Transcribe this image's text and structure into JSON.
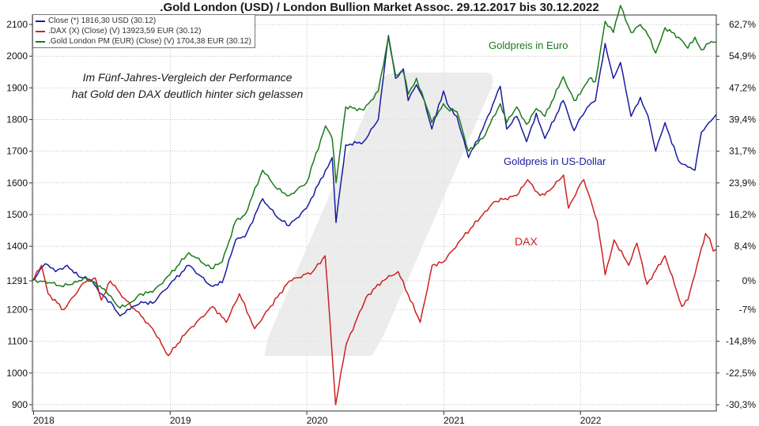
{
  "title": ".Gold London (USD) / London Bullion Market Assoc. 29.12.2017 bis 30.12.2022",
  "legend": [
    {
      "label": "Close (*) 1816,30 USD (30.12)",
      "color": "#1a1aa0"
    },
    {
      "label": ".DAX (X) (Close) (V) 13923,59 EUR (30.12)",
      "color": "#cc2222"
    },
    {
      "label": ".Gold London PM (EUR) (Close) (V) 1704,38 EUR (30.12)",
      "color": "#1a7a1a"
    }
  ],
  "annotations": {
    "note_line1": "Im Fünf-Jahres-Vergleich der Performance",
    "note_line2": "hat Gold den DAX deutlich hinter sich gelassen",
    "euro": "Goldpreis in Euro",
    "usd": "Goldpreis in US-Dollar",
    "dax": "DAX"
  },
  "chart_data": {
    "type": "line",
    "x_ticks": [
      "2018",
      "2019",
      "2020",
      "2021",
      "2022"
    ],
    "x_tick_dates": [
      "2018-01-01",
      "2019-01-01",
      "2020-01-01",
      "2021-01-01",
      "2022-01-01"
    ],
    "x_range": [
      "2017-12-29",
      "2022-12-30"
    ],
    "y_left_ticks": [
      900,
      1000,
      1100,
      1200,
      1291,
      1400,
      1500,
      1600,
      1700,
      1800,
      1900,
      2000,
      2100
    ],
    "y_left_range": [
      880,
      2130
    ],
    "y_right_ticks": [
      "62,7%",
      "54,9%",
      "47,2%",
      "39,4%",
      "31,7%",
      "23,9%",
      "16,2%",
      "8,4%",
      "0%",
      "-7%",
      "-14,8%",
      "-22,5%",
      "-30,3%"
    ],
    "grid": true,
    "series": [
      {
        "name": "Close (*) 1816,30 USD (30.12)",
        "color": "#1a1aa0",
        "points": [
          [
            "2017-12-29",
            1291
          ],
          [
            "2018-02-01",
            1345
          ],
          [
            "2018-03-01",
            1320
          ],
          [
            "2018-04-01",
            1340
          ],
          [
            "2018-05-01",
            1305
          ],
          [
            "2018-06-01",
            1295
          ],
          [
            "2018-07-01",
            1250
          ],
          [
            "2018-08-01",
            1215
          ],
          [
            "2018-08-20",
            1180
          ],
          [
            "2018-09-15",
            1200
          ],
          [
            "2018-10-15",
            1225
          ],
          [
            "2018-11-15",
            1220
          ],
          [
            "2018-12-31",
            1280
          ],
          [
            "2019-02-20",
            1340
          ],
          [
            "2019-04-20",
            1275
          ],
          [
            "2019-05-20",
            1285
          ],
          [
            "2019-06-25",
            1420
          ],
          [
            "2019-07-20",
            1430
          ],
          [
            "2019-09-05",
            1550
          ],
          [
            "2019-10-15",
            1490
          ],
          [
            "2019-11-15",
            1465
          ],
          [
            "2019-12-31",
            1520
          ],
          [
            "2020-02-20",
            1640
          ],
          [
            "2020-03-09",
            1680
          ],
          [
            "2020-03-19",
            1475
          ],
          [
            "2020-04-14",
            1720
          ],
          [
            "2020-06-01",
            1730
          ],
          [
            "2020-07-10",
            1800
          ],
          [
            "2020-08-06",
            2065
          ],
          [
            "2020-08-25",
            1930
          ],
          [
            "2020-09-15",
            1960
          ],
          [
            "2020-09-28",
            1860
          ],
          [
            "2020-10-20",
            1910
          ],
          [
            "2020-11-10",
            1860
          ],
          [
            "2020-11-30",
            1770
          ],
          [
            "2020-12-31",
            1890
          ],
          [
            "2021-01-10",
            1850
          ],
          [
            "2021-02-05",
            1810
          ],
          [
            "2021-03-08",
            1680
          ],
          [
            "2021-04-15",
            1770
          ],
          [
            "2021-06-01",
            1905
          ],
          [
            "2021-06-18",
            1770
          ],
          [
            "2021-07-15",
            1810
          ],
          [
            "2021-08-10",
            1730
          ],
          [
            "2021-09-05",
            1820
          ],
          [
            "2021-09-28",
            1740
          ],
          [
            "2021-11-16",
            1860
          ],
          [
            "2021-12-15",
            1765
          ],
          [
            "2021-12-31",
            1805
          ],
          [
            "2022-01-25",
            1845
          ],
          [
            "2022-02-10",
            1860
          ],
          [
            "2022-03-08",
            2040
          ],
          [
            "2022-03-30",
            1930
          ],
          [
            "2022-04-18",
            1980
          ],
          [
            "2022-05-16",
            1810
          ],
          [
            "2022-06-10",
            1870
          ],
          [
            "2022-07-01",
            1810
          ],
          [
            "2022-07-21",
            1700
          ],
          [
            "2022-08-15",
            1790
          ],
          [
            "2022-09-20",
            1670
          ],
          [
            "2022-10-15",
            1650
          ],
          [
            "2022-11-03",
            1640
          ],
          [
            "2022-11-20",
            1760
          ],
          [
            "2022-12-10",
            1790
          ],
          [
            "2022-12-30",
            1816
          ]
        ]
      },
      {
        "name": ".DAX (X) (Close) (V) 13923,59 EUR (30.12)",
        "color": "#cc2222",
        "points": [
          [
            "2017-12-29",
            1291
          ],
          [
            "2018-01-22",
            1340
          ],
          [
            "2018-02-09",
            1250
          ],
          [
            "2018-03-23",
            1200
          ],
          [
            "2018-05-15",
            1285
          ],
          [
            "2018-06-15",
            1300
          ],
          [
            "2018-07-01",
            1230
          ],
          [
            "2018-07-25",
            1290
          ],
          [
            "2018-09-01",
            1235
          ],
          [
            "2018-10-15",
            1180
          ],
          [
            "2018-11-15",
            1140
          ],
          [
            "2018-12-27",
            1055
          ],
          [
            "2019-02-15",
            1130
          ],
          [
            "2019-04-25",
            1210
          ],
          [
            "2019-05-31",
            1160
          ],
          [
            "2019-07-05",
            1250
          ],
          [
            "2019-08-15",
            1140
          ],
          [
            "2019-09-20",
            1200
          ],
          [
            "2019-11-15",
            1290
          ],
          [
            "2020-01-17",
            1320
          ],
          [
            "2020-02-19",
            1370
          ],
          [
            "2020-03-02",
            1180
          ],
          [
            "2020-03-18",
            900
          ],
          [
            "2020-04-15",
            1090
          ],
          [
            "2020-06-08",
            1240
          ],
          [
            "2020-07-20",
            1290
          ],
          [
            "2020-09-01",
            1320
          ],
          [
            "2020-10-30",
            1160
          ],
          [
            "2020-12-01",
            1340
          ],
          [
            "2020-12-31",
            1350
          ],
          [
            "2021-02-15",
            1420
          ],
          [
            "2021-04-15",
            1500
          ],
          [
            "2021-05-15",
            1540
          ],
          [
            "2021-07-15",
            1560
          ],
          [
            "2021-08-13",
            1610
          ],
          [
            "2021-09-15",
            1560
          ],
          [
            "2021-10-10",
            1575
          ],
          [
            "2021-11-17",
            1625
          ],
          [
            "2021-11-30",
            1520
          ],
          [
            "2021-12-31",
            1595
          ],
          [
            "2022-01-10",
            1610
          ],
          [
            "2022-02-15",
            1480
          ],
          [
            "2022-03-08",
            1310
          ],
          [
            "2022-04-01",
            1420
          ],
          [
            "2022-05-10",
            1340
          ],
          [
            "2022-06-01",
            1410
          ],
          [
            "2022-06-28",
            1280
          ],
          [
            "2022-08-15",
            1370
          ],
          [
            "2022-09-29",
            1210
          ],
          [
            "2022-10-15",
            1230
          ],
          [
            "2022-11-15",
            1370
          ],
          [
            "2022-12-01",
            1440
          ],
          [
            "2022-12-12",
            1425
          ],
          [
            "2022-12-22",
            1385
          ],
          [
            "2022-12-30",
            1390
          ]
        ]
      },
      {
        "name": ".Gold London PM (EUR) (Close) (V) 1704,38 EUR (30.12)",
        "color": "#1a7a1a",
        "points": [
          [
            "2017-12-29",
            1291
          ],
          [
            "2018-02-01",
            1290
          ],
          [
            "2018-03-15",
            1275
          ],
          [
            "2018-04-15",
            1280
          ],
          [
            "2018-05-15",
            1300
          ],
          [
            "2018-06-15",
            1285
          ],
          [
            "2018-07-15",
            1255
          ],
          [
            "2018-08-20",
            1205
          ],
          [
            "2018-09-15",
            1220
          ],
          [
            "2018-10-15",
            1250
          ],
          [
            "2018-11-15",
            1255
          ],
          [
            "2018-12-31",
            1310
          ],
          [
            "2019-02-20",
            1380
          ],
          [
            "2019-04-20",
            1330
          ],
          [
            "2019-05-20",
            1350
          ],
          [
            "2019-06-25",
            1480
          ],
          [
            "2019-07-20",
            1500
          ],
          [
            "2019-09-05",
            1640
          ],
          [
            "2019-10-15",
            1580
          ],
          [
            "2019-11-15",
            1560
          ],
          [
            "2019-12-31",
            1600
          ],
          [
            "2020-02-20",
            1780
          ],
          [
            "2020-03-09",
            1740
          ],
          [
            "2020-03-19",
            1600
          ],
          [
            "2020-04-14",
            1840
          ],
          [
            "2020-06-01",
            1830
          ],
          [
            "2020-07-10",
            1890
          ],
          [
            "2020-08-06",
            2060
          ],
          [
            "2020-08-25",
            1940
          ],
          [
            "2020-09-15",
            1950
          ],
          [
            "2020-09-28",
            1880
          ],
          [
            "2020-10-20",
            1930
          ],
          [
            "2020-11-10",
            1860
          ],
          [
            "2020-11-30",
            1790
          ],
          [
            "2020-12-31",
            1850
          ],
          [
            "2021-01-10",
            1835
          ],
          [
            "2021-02-05",
            1825
          ],
          [
            "2021-03-08",
            1700
          ],
          [
            "2021-04-15",
            1740
          ],
          [
            "2021-06-01",
            1850
          ],
          [
            "2021-06-18",
            1790
          ],
          [
            "2021-07-15",
            1840
          ],
          [
            "2021-08-10",
            1785
          ],
          [
            "2021-09-05",
            1835
          ],
          [
            "2021-09-28",
            1810
          ],
          [
            "2021-11-16",
            1935
          ],
          [
            "2021-12-15",
            1860
          ],
          [
            "2021-12-31",
            1880
          ],
          [
            "2022-01-25",
            1930
          ],
          [
            "2022-02-10",
            1920
          ],
          [
            "2022-03-08",
            2110
          ],
          [
            "2022-03-30",
            2075
          ],
          [
            "2022-04-18",
            2160
          ],
          [
            "2022-05-16",
            2075
          ],
          [
            "2022-06-10",
            2100
          ],
          [
            "2022-07-01",
            2065
          ],
          [
            "2022-07-21",
            2010
          ],
          [
            "2022-08-15",
            2090
          ],
          [
            "2022-09-20",
            2060
          ],
          [
            "2022-10-15",
            2025
          ],
          [
            "2022-11-03",
            2060
          ],
          [
            "2022-11-20",
            2020
          ],
          [
            "2022-12-10",
            2040
          ],
          [
            "2022-12-30",
            2045
          ]
        ]
      }
    ]
  }
}
